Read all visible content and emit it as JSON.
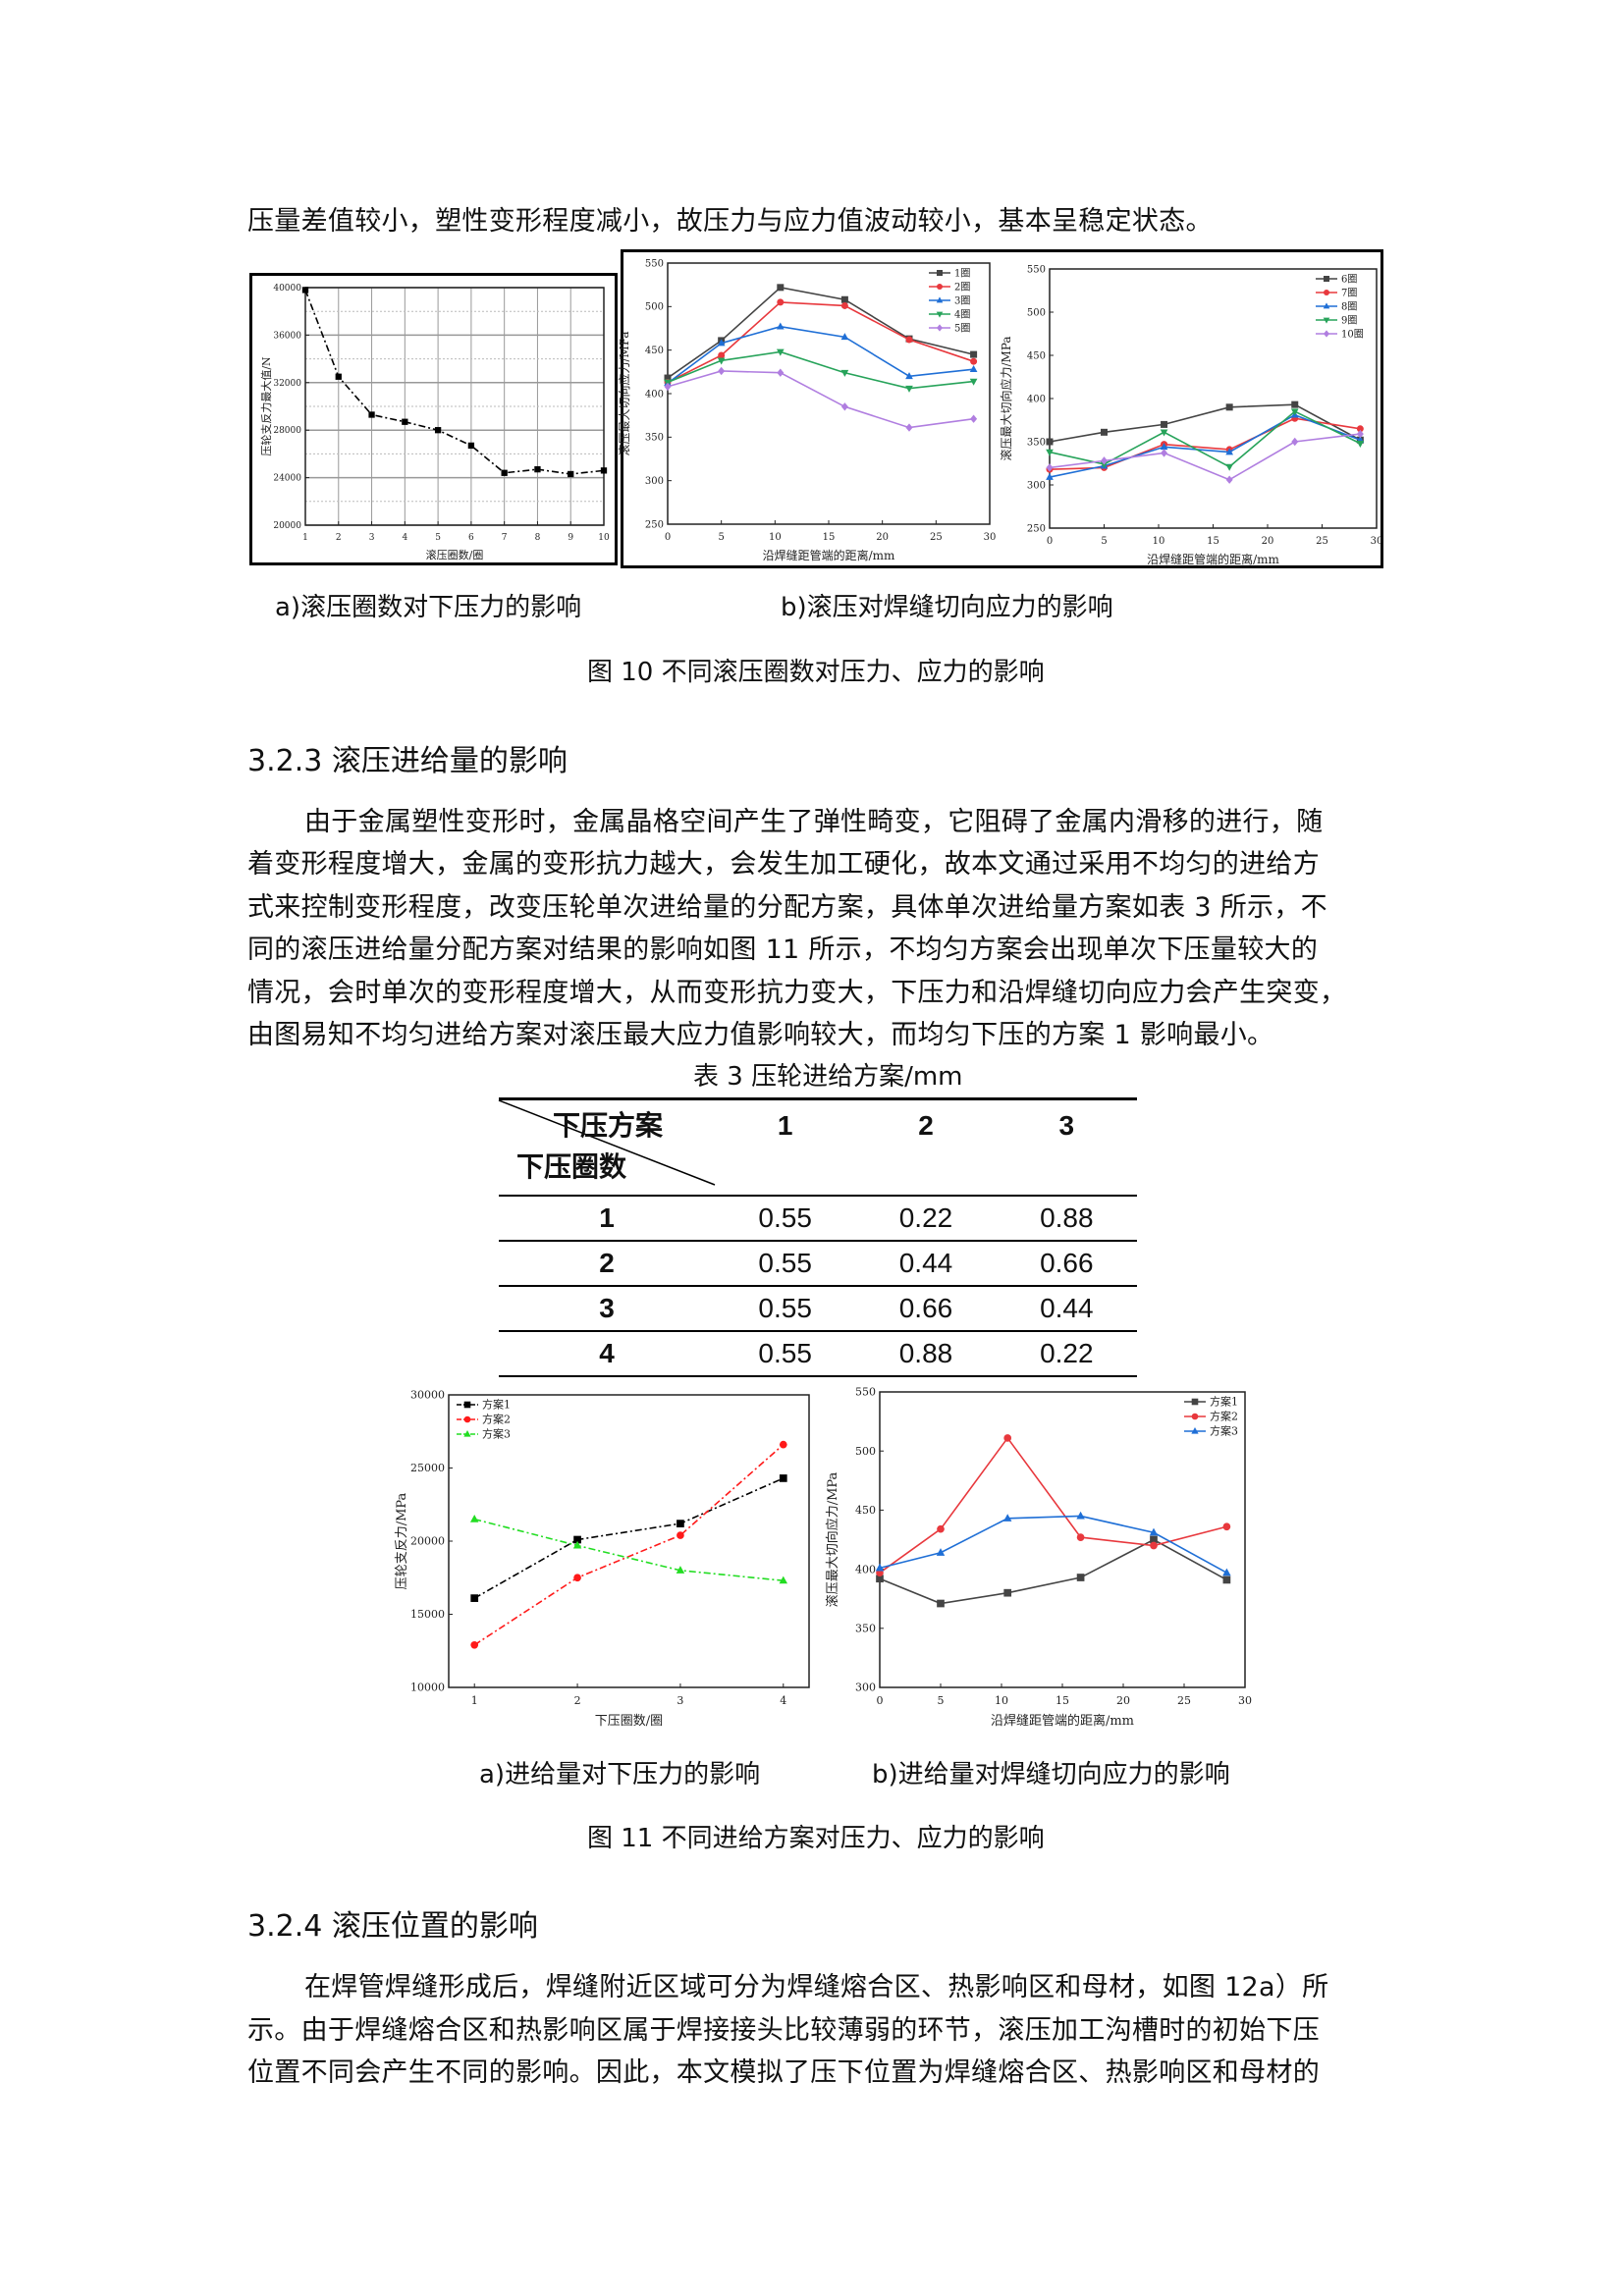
{
  "text": {
    "line0": "压量差值较小，塑性变形程度减小，故压力与应力值波动较小，基本呈稳定状态。",
    "fig10_cap_a": "a)滚压圈数对下压力的影响",
    "fig10_cap_b": "b)滚压对焊缝切向应力的影响",
    "fig10_title": "图 10  不同滚压圈数对压力、应力的影响",
    "heading_323": "3.2.3  滚压进给量的影响",
    "para323": [
      "由于金属塑性变形时，金属晶格空间产生了弹性畸变，它阻碍了金属内滑移的进行，随",
      "着变形程度增大，金属的变形抗力越大，会发生加工硬化，故本文通过采用不均匀的进给方",
      "式来控制变形程度，改变压轮单次进给量的分配方案，具体单次进给量方案如表 3 所示，不",
      "同的滚压进给量分配方案对结果的影响如图 11 所示，不均匀方案会出现单次下压量较大的",
      "情况，会时单次的变形程度增大，从而变形抗力变大，下压力和沿焊缝切向应力会产生突变，",
      "由图易知不均匀进给方案对滚压最大应力值影响较大，而均匀下压的方案 1 影响最小。"
    ],
    "fig11_cap_a": "a)进给量对下压力的影响",
    "fig11_cap_b": "b)进给量对焊缝切向应力的影响",
    "fig11_title": "图 11  不同进给方案对压力、应力的影响",
    "heading_324": "3.2.4  滚压位置的影响",
    "para324": [
      "在焊管焊缝形成后，焊缝附近区域可分为焊缝熔合区、热影响区和母材，如图 12a）所",
      "示。由于焊缝熔合区和热影响区属于焊接接头比较薄弱的环节，滚压加工沟槽时的初始下压",
      "位置不同会产生不同的影响。因此，本文模拟了压下位置为焊缝熔合区、热影响区和母材的"
    ]
  },
  "table3": {
    "caption": "表 3  压轮进给方案/mm",
    "corner_top": "下压方案",
    "corner_bottom": "下压圈数",
    "columns": [
      "1",
      "2",
      "3"
    ],
    "rows": [
      {
        "label": "1",
        "values": [
          "0.55",
          "0.22",
          "0.88"
        ]
      },
      {
        "label": "2",
        "values": [
          "0.55",
          "0.44",
          "0.66"
        ]
      },
      {
        "label": "3",
        "values": [
          "0.55",
          "0.66",
          "0.44"
        ]
      },
      {
        "label": "4",
        "values": [
          "0.55",
          "0.88",
          "0.22"
        ]
      }
    ]
  },
  "chart_data": [
    {
      "id": "fig10a",
      "type": "line",
      "xlabel": "滚压圈数/圈",
      "ylabel": "压轮支反力最大值/N",
      "xlim": [
        1,
        10
      ],
      "ylim": [
        20000,
        40000
      ],
      "xticks": [
        1,
        2,
        3,
        4,
        5,
        6,
        7,
        8,
        9,
        10
      ],
      "yticks": [
        20000,
        24000,
        28000,
        32000,
        36000,
        40000
      ],
      "grid": true,
      "legend": "none",
      "series": [
        {
          "x": [
            1,
            2,
            3,
            4,
            5,
            6,
            7,
            8,
            9,
            10
          ],
          "y": [
            39800,
            32500,
            29300,
            28700,
            28000,
            26700,
            24400,
            24700,
            24300,
            24600
          ],
          "color": "#000000",
          "marker": "square",
          "dash": "dashdot"
        }
      ]
    },
    {
      "id": "fig10b1",
      "type": "line",
      "xlabel": "沿焊缝距管端的距离/mm",
      "ylabel": "滚压最大切向应力/MPa",
      "xlim": [
        0,
        30
      ],
      "ylim": [
        250,
        550
      ],
      "xticks": [
        0,
        5,
        10,
        15,
        20,
        25,
        30
      ],
      "yticks": [
        250,
        300,
        350,
        400,
        450,
        500,
        550
      ],
      "grid": false,
      "legend": "top-right",
      "series": [
        {
          "name": "1圈",
          "x": [
            0,
            5,
            10.5,
            16.5,
            22.5,
            28.5
          ],
          "y": [
            418,
            461,
            522,
            508,
            463,
            445
          ],
          "color": "#444444",
          "marker": "square"
        },
        {
          "name": "2圈",
          "x": [
            0,
            5,
            10.5,
            16.5,
            22.5,
            28.5
          ],
          "y": [
            413,
            444,
            505,
            501,
            462,
            437
          ],
          "color": "#e8383d",
          "marker": "circle"
        },
        {
          "name": "3圈",
          "x": [
            0,
            5,
            10.5,
            16.5,
            22.5,
            28.5
          ],
          "y": [
            412,
            458,
            477,
            465,
            420,
            428
          ],
          "color": "#1f6fd6",
          "marker": "triangle"
        },
        {
          "name": "4圈",
          "x": [
            0,
            5,
            10.5,
            16.5,
            22.5,
            28.5
          ],
          "y": [
            413,
            438,
            448,
            424,
            406,
            414
          ],
          "color": "#27a35a",
          "marker": "tri-down"
        },
        {
          "name": "5圈",
          "x": [
            0,
            5,
            10.5,
            16.5,
            22.5,
            28.5
          ],
          "y": [
            408,
            426,
            424,
            385,
            361,
            371
          ],
          "color": "#b07ee0",
          "marker": "diamond"
        }
      ]
    },
    {
      "id": "fig10b2",
      "type": "line",
      "xlabel": "沿焊缝距管端的距离/mm",
      "ylabel": "滚压最大切向应力/MPa",
      "xlim": [
        0,
        30
      ],
      "ylim": [
        250,
        550
      ],
      "xticks": [
        0,
        5,
        10,
        15,
        20,
        25,
        30
      ],
      "yticks": [
        250,
        300,
        350,
        400,
        450,
        500,
        550
      ],
      "grid": false,
      "legend": "top-right",
      "series": [
        {
          "name": "6圈",
          "x": [
            0,
            5,
            10.5,
            16.5,
            22.5,
            28.5
          ],
          "y": [
            350,
            361,
            370,
            390,
            393,
            352
          ],
          "color": "#444444",
          "marker": "square"
        },
        {
          "name": "7圈",
          "x": [
            0,
            5,
            10.5,
            16.5,
            22.5,
            28.5
          ],
          "y": [
            318,
            320,
            347,
            341,
            377,
            365
          ],
          "color": "#e8383d",
          "marker": "circle"
        },
        {
          "name": "8圈",
          "x": [
            0,
            5,
            10.5,
            16.5,
            22.5,
            28.5
          ],
          "y": [
            309,
            322,
            344,
            338,
            381,
            352
          ],
          "color": "#1f6fd6",
          "marker": "triangle"
        },
        {
          "name": "9圈",
          "x": [
            0,
            5,
            10.5,
            16.5,
            22.5,
            28.5
          ],
          "y": [
            338,
            324,
            361,
            321,
            385,
            348
          ],
          "color": "#27a35a",
          "marker": "tri-down"
        },
        {
          "name": "10圈",
          "x": [
            0,
            5,
            10.5,
            16.5,
            22.5,
            28.5
          ],
          "y": [
            320,
            328,
            337,
            306,
            350,
            359
          ],
          "color": "#b07ee0",
          "marker": "diamond"
        }
      ]
    },
    {
      "id": "fig11a",
      "type": "line",
      "xlabel": "下压圈数/圈",
      "ylabel": "压轮支反力/MPa",
      "xlim": [
        0.75,
        4.25
      ],
      "ylim": [
        10000,
        30000
      ],
      "xticks": [
        1,
        2,
        3,
        4
      ],
      "yticks": [
        10000,
        15000,
        20000,
        25000,
        30000
      ],
      "grid": false,
      "legend": "top-left",
      "series": [
        {
          "name": "方案1",
          "x": [
            1,
            2,
            3,
            4
          ],
          "y": [
            16100,
            20100,
            21200,
            24300
          ],
          "color": "#000000",
          "marker": "square",
          "dash": "dashdot"
        },
        {
          "name": "方案2",
          "x": [
            1,
            2,
            3,
            4
          ],
          "y": [
            12900,
            17500,
            20400,
            26600
          ],
          "color": "#ff1a1a",
          "marker": "circle",
          "dash": "dashdot"
        },
        {
          "name": "方案3",
          "x": [
            1,
            2,
            3,
            4
          ],
          "y": [
            21500,
            19700,
            18000,
            17300
          ],
          "color": "#22dd22",
          "marker": "triangle",
          "dash": "dashdot"
        }
      ]
    },
    {
      "id": "fig11b",
      "type": "line",
      "xlabel": "沿焊缝距管端的距离/mm",
      "ylabel": "滚压最大切向应力/MPa",
      "xlim": [
        0,
        30
      ],
      "ylim": [
        300,
        550
      ],
      "xticks": [
        0,
        5,
        10,
        15,
        20,
        25,
        30
      ],
      "yticks": [
        300,
        350,
        400,
        450,
        500,
        550
      ],
      "grid": false,
      "legend": "top-right",
      "series": [
        {
          "name": "方案1",
          "x": [
            0,
            5,
            10.5,
            16.5,
            22.5,
            28.5
          ],
          "y": [
            392,
            371,
            380,
            393,
            425,
            391
          ],
          "color": "#444444",
          "marker": "square"
        },
        {
          "name": "方案2",
          "x": [
            0,
            5,
            10.5,
            16.5,
            22.5,
            28.5
          ],
          "y": [
            397,
            434,
            511,
            427,
            420,
            436
          ],
          "color": "#e8383d",
          "marker": "circle"
        },
        {
          "name": "方案3",
          "x": [
            0,
            5,
            10.5,
            16.5,
            22.5,
            28.5
          ],
          "y": [
            401,
            414,
            443,
            445,
            431,
            397
          ],
          "color": "#1f6fd6",
          "marker": "triangle"
        }
      ]
    }
  ]
}
